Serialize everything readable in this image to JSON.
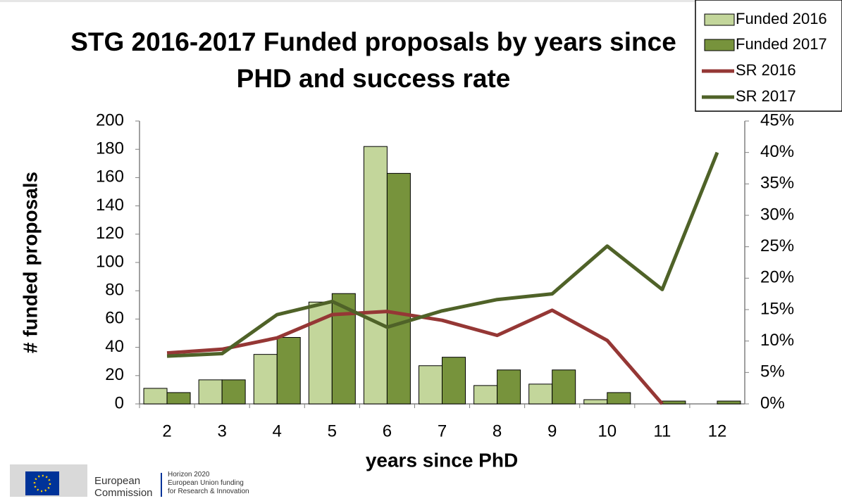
{
  "chart_data": {
    "type": "bar",
    "title": "STG 2016-2017 Funded proposals by years since PHD and success rate",
    "x_label": "years since PhD",
    "y_label": "# funded proposals",
    "categories": [
      "2",
      "3",
      "4",
      "5",
      "6",
      "7",
      "8",
      "9",
      "10",
      "11",
      "12"
    ],
    "series": [
      {
        "name": "Funded 2016",
        "type": "bar",
        "color": "#c3d69b",
        "values": [
          11,
          17,
          35,
          72,
          182,
          27,
          13,
          14,
          3,
          0,
          0
        ]
      },
      {
        "name": "Funded 2017",
        "type": "bar",
        "color": "#77933c",
        "values": [
          8,
          17,
          47,
          78,
          163,
          33,
          24,
          24,
          8,
          2,
          2
        ]
      },
      {
        "name": "SR 2016",
        "type": "line",
        "axis": "y2",
        "color": "#953735",
        "values": [
          8.1,
          8.7,
          10.5,
          14.2,
          14.7,
          13.3,
          10.9,
          14.9,
          10.1,
          0,
          null
        ]
      },
      {
        "name": "SR 2017",
        "type": "line",
        "axis": "y2",
        "color": "#4f6228",
        "values": [
          7.6,
          8,
          14.2,
          16.3,
          12.2,
          14.8,
          16.6,
          17.5,
          25.1,
          18.2,
          40
        ]
      }
    ],
    "ylim": [
      0,
      200
    ],
    "yticks": [
      0,
      20,
      40,
      60,
      80,
      100,
      120,
      140,
      160,
      180,
      200
    ],
    "y2lim": [
      0,
      45
    ],
    "y2ticks": [
      {
        "value": 0,
        "label": "0%"
      },
      {
        "value": 5,
        "label": "5%"
      },
      {
        "value": 10,
        "label": "10%"
      },
      {
        "value": 15,
        "label": "15%"
      },
      {
        "value": 20,
        "label": "20%"
      },
      {
        "value": 25,
        "label": "25%"
      },
      {
        "value": 30,
        "label": "30%"
      },
      {
        "value": 35,
        "label": "35%"
      },
      {
        "value": 40,
        "label": "40%"
      },
      {
        "value": 45,
        "label": "45%"
      }
    ],
    "grid": false,
    "legend": "top-right"
  },
  "footer": {
    "org": [
      "European",
      "Commission"
    ],
    "program": [
      "Horizon 2020",
      "European Union funding",
      "for Research & Innovation"
    ]
  }
}
